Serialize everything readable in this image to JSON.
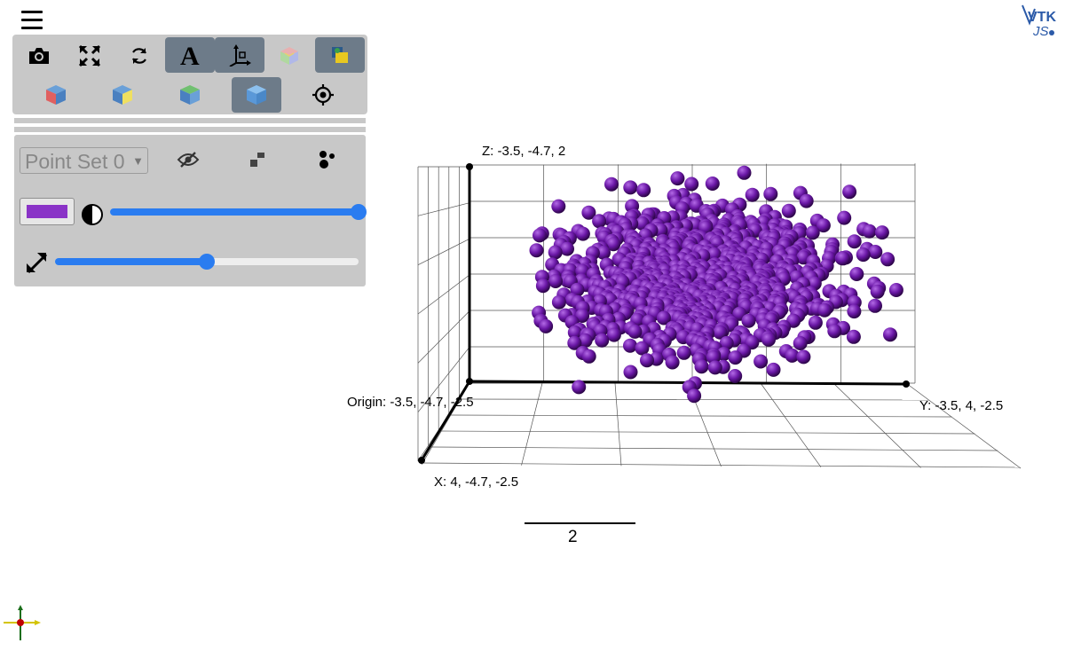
{
  "app": {
    "name": "VTK.js point cloud viewer",
    "logo_text_top": "VTK",
    "logo_text_bottom": "JS"
  },
  "toolbar": {
    "row1": [
      {
        "name": "screenshot",
        "icon": "camera-icon",
        "active": false
      },
      {
        "name": "fullscreen",
        "icon": "expand-icon",
        "active": false
      },
      {
        "name": "reset-camera",
        "icon": "refresh-icon",
        "active": false
      },
      {
        "name": "annotations",
        "icon": "text-A-icon",
        "active": true
      },
      {
        "name": "axes",
        "icon": "axes-icon",
        "active": true
      },
      {
        "name": "orientation-cube",
        "icon": "color-cube-icon",
        "active": false
      },
      {
        "name": "background",
        "icon": "layers-icon",
        "active": true
      }
    ],
    "row2": [
      {
        "name": "view-x",
        "icon": "cube-red-icon",
        "active": false
      },
      {
        "name": "view-y",
        "icon": "cube-yellow-icon",
        "active": false
      },
      {
        "name": "view-z",
        "icon": "cube-green-icon",
        "active": false
      },
      {
        "name": "view-3d",
        "icon": "cube-blue-icon",
        "active": true
      },
      {
        "name": "center",
        "icon": "target-icon",
        "active": false
      }
    ]
  },
  "panel": {
    "dataset_select": {
      "value": "Point Set 0"
    },
    "color": "#8a33c7",
    "opacity": 1.0,
    "point_size": 0.5
  },
  "scene": {
    "labels": {
      "z": "Z: -3.5, -4.7, 2",
      "origin": "Origin: -3.5, -4.7, -2.5",
      "y": "Y: -3.5, 4, -2.5",
      "x": "X: 4, -4.7, -2.5"
    },
    "scale_bar": "2",
    "point_color": "#6a17a6",
    "axis_colors": {
      "x": "#c00000",
      "y": "#d4c400",
      "z": "#1a6e1a"
    }
  }
}
